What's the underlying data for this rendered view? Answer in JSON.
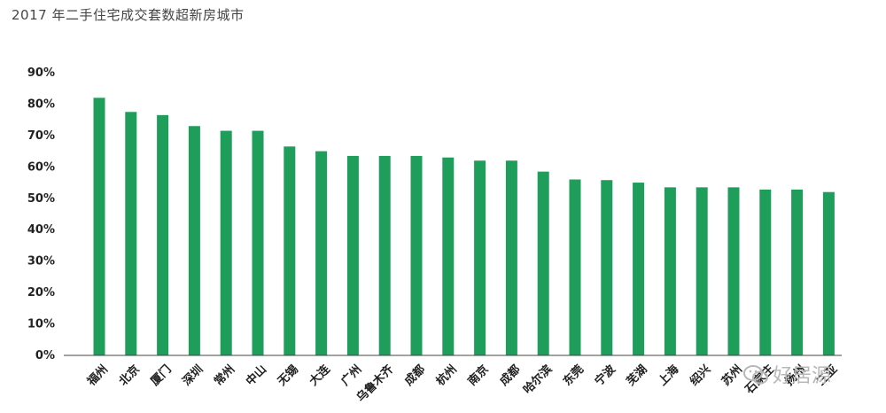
{
  "title": "2017 年二手住宅成交套数超新房城市",
  "watermark": {
    "text": "好居源",
    "icon": "wechat-icon"
  },
  "chart_data": {
    "type": "bar",
    "title": "2017 年二手住宅成交套数超新房城市",
    "xlabel": "",
    "ylabel": "",
    "ylim": [
      0,
      90
    ],
    "yticks": [
      "0%",
      "10%",
      "20%",
      "30%",
      "40%",
      "50%",
      "60%",
      "70%",
      "80%",
      "90%"
    ],
    "grid": false,
    "legend": "none",
    "bar_color": "#1f9d5b",
    "categories": [
      "福州",
      "北京",
      "厦门",
      "深圳",
      "常州",
      "中山",
      "无锡",
      "大连",
      "广州",
      "乌鲁木齐",
      "成都",
      "杭州",
      "南京",
      "成都",
      "哈尔滨",
      "东莞",
      "宁波",
      "芜湖",
      "上海",
      "绍兴",
      "苏州",
      "石家庄",
      "扬州",
      "三亚"
    ],
    "values": [
      82,
      77.5,
      76.5,
      73,
      71.5,
      71.5,
      66.5,
      65,
      63.5,
      63.5,
      63.5,
      63,
      62,
      62,
      58.5,
      56,
      55.8,
      55,
      53.5,
      53.5,
      53.5,
      52.8,
      52.8,
      52
    ]
  }
}
